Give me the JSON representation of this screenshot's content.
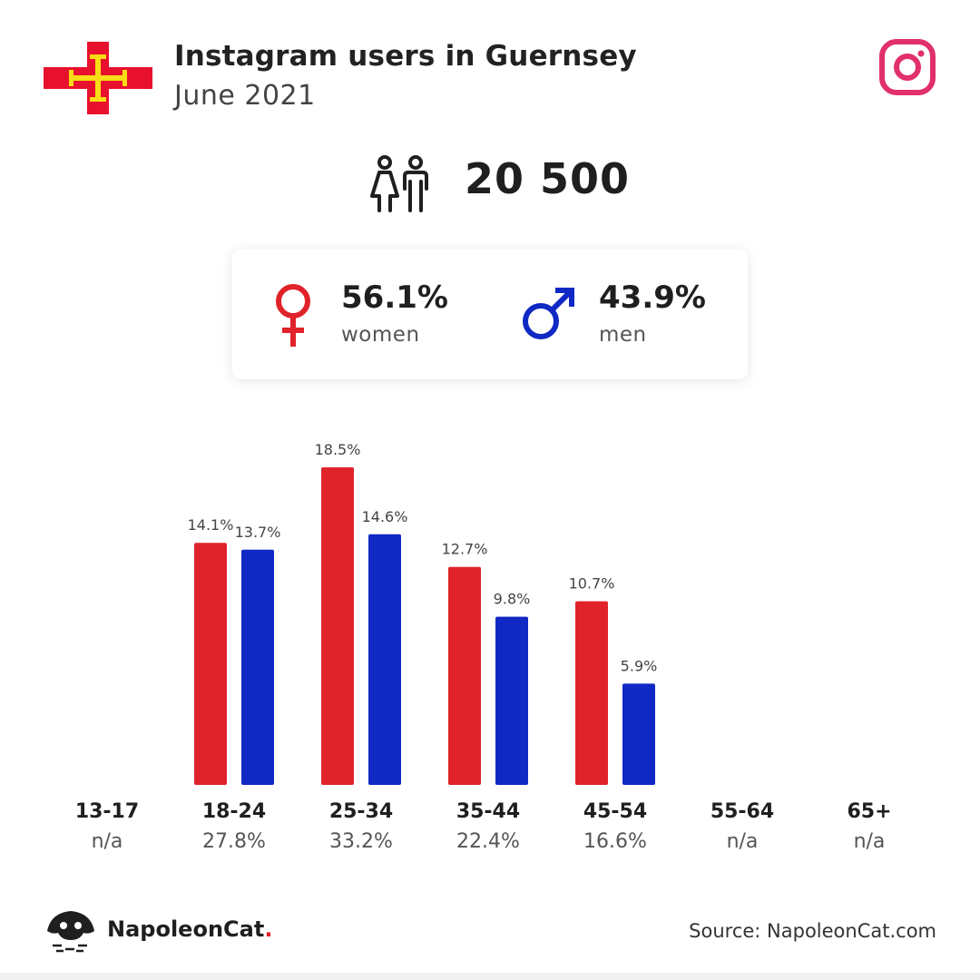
{
  "header": {
    "title": "Instagram users in Guernsey",
    "subtitle": "June 2021"
  },
  "flag_icon": "guernsey-flag",
  "platform_icon": "instagram-icon",
  "total": {
    "icon": "users-icon",
    "value": "20 500"
  },
  "gender": {
    "women": {
      "value": "56.1%",
      "label": "women",
      "icon": "female-icon",
      "color": "#e0232b"
    },
    "men": {
      "value": "43.9%",
      "label": "men",
      "icon": "male-icon",
      "color": "#1029c4"
    }
  },
  "chart_data": {
    "type": "bar",
    "categories": [
      "13-17",
      "18-24",
      "25-34",
      "35-44",
      "45-54",
      "55-64",
      "65+"
    ],
    "category_totals": [
      "n/a",
      "27.8%",
      "33.2%",
      "22.4%",
      "16.6%",
      "n/a",
      "n/a"
    ],
    "series": [
      {
        "color": "#e0232b",
        "values": [
          null,
          14.1,
          18.5,
          12.7,
          10.7,
          null,
          null
        ],
        "labels": [
          "",
          "14.1%",
          "18.5%",
          "12.7%",
          "10.7%",
          "",
          ""
        ]
      },
      {
        "color": "#1029c4",
        "values": [
          null,
          13.7,
          14.6,
          9.8,
          5.9,
          null,
          null
        ],
        "labels": [
          "",
          "13.7%",
          "14.6%",
          "9.8%",
          "5.9%",
          "",
          ""
        ]
      }
    ],
    "ylim": [
      0,
      18.5
    ],
    "grid": false,
    "legend": "none"
  },
  "footer": {
    "brand_name": "NapoleonCat",
    "brand_dot": ".",
    "brand_icon": "napoleoncat-logo-icon",
    "source": "Source: NapoleonCat.com"
  }
}
